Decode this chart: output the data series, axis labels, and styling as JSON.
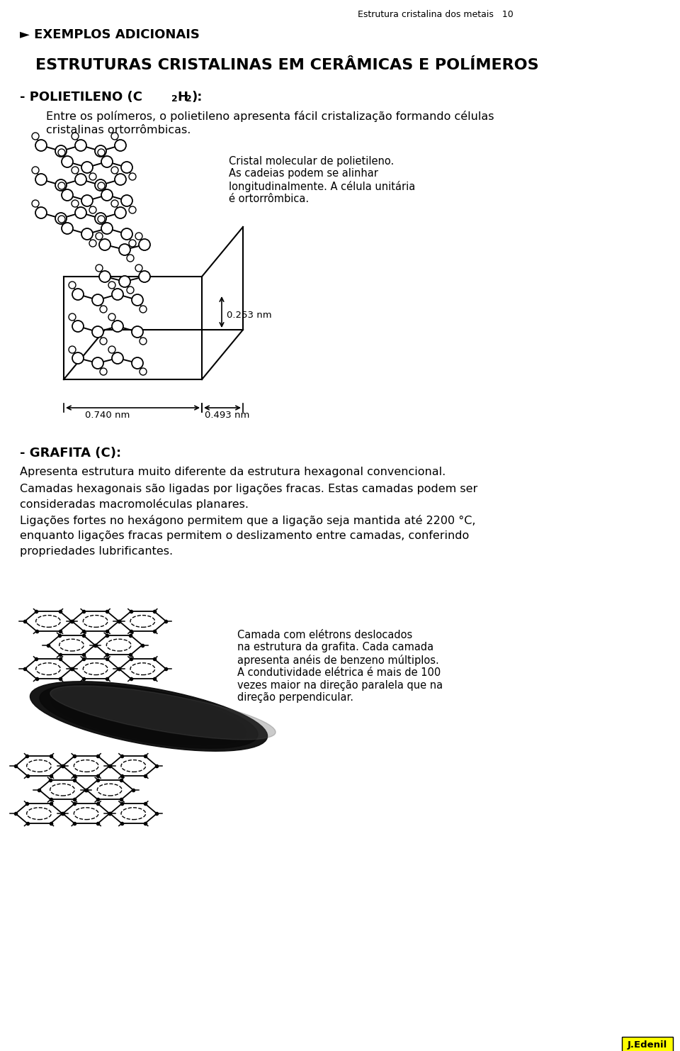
{
  "bg_color": "#ffffff",
  "header_right": "Estrutura cristalina dos metais   10",
  "section_label": "► EXEMPLOS ADICIONAIS",
  "title": "ESTRUTURAS CRISTALINAS EM CERÂMICAS E POLÍMEROS",
  "poly_hdr_a": "- POLIETILENO (C",
  "poly_sub1": "2",
  "poly_hdr_b": "H",
  "poly_sub2": "2",
  "poly_hdr_c": "):",
  "poly_text_line1": "Entre os polímeros, o polietileno apresenta fácil cristalização formando células",
  "poly_text_line2": "cristalinas ortorrômbicas.",
  "crystal_caption": "Cristal molecular de polietileno.\nAs cadeias podem se alinhar\nlongitudinalmente. A célula unitária\né ortorrômbica.",
  "dim_side": "0.253 nm",
  "dim_bottom1": "0.740 nm",
  "dim_bottom2": "0.493 nm",
  "grafita_header": "- GRAFITA (C):",
  "grafita_line1": "Apresenta estrutura muito diferente da estrutura hexagonal convencional.",
  "grafita_line2": "Camadas hexagonais são ligadas por ligações fracas. Estas camadas podem ser",
  "grafita_line3": "consideradas macromoléculas planares.",
  "grafita_line4": "Ligações fortes no hexágono permitem que a ligação seja mantida até 2200 °C,",
  "grafita_line5": "enquanto ligações fracas permitem o deslizamento entre camadas, conferindo",
  "grafita_line6": "propriedades lubrificantes.",
  "grafita_caption": "Camada com elétrons deslocados\nna estrutura da grafita. Cada camada\napresenta anéis de benzeno múltiplos.\nA condutividade elétrica é mais de 100\nvezes maior na direção paralela que na\ndireção perpendicular.",
  "footer": "J.Edenil",
  "footer_bg": "#ffff00"
}
